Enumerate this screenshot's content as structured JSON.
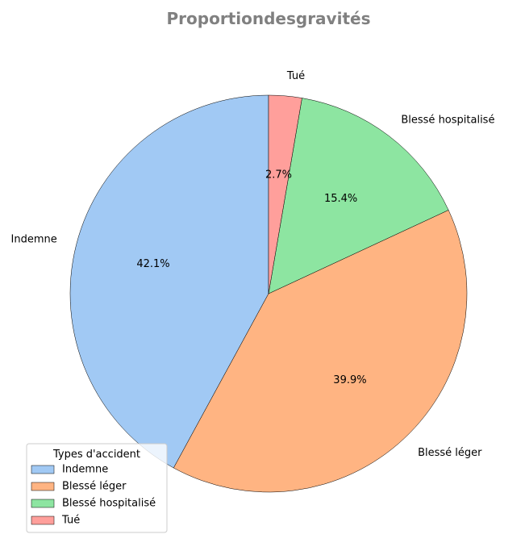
{
  "chart_data": {
    "type": "pie",
    "title": "Proportiondesgravités",
    "categories": [
      "Indemne",
      "Blessé léger",
      "Blessé hospitalisé",
      "Tué"
    ],
    "values": [
      42.1,
      39.9,
      15.4,
      2.7
    ],
    "value_labels": [
      "42.1%",
      "39.9%",
      "15.4%",
      "2.7%"
    ],
    "colors": [
      "#a1c9f4",
      "#ffb482",
      "#8de5a1",
      "#ff9f9b"
    ],
    "start_angle_deg": 90,
    "direction": "counterclockwise",
    "legend": {
      "title": "Types d'accident",
      "placement": "lower-left",
      "entries": [
        "Indemne",
        "Blessé léger",
        "Blessé hospitalisé",
        "Tué"
      ]
    }
  }
}
